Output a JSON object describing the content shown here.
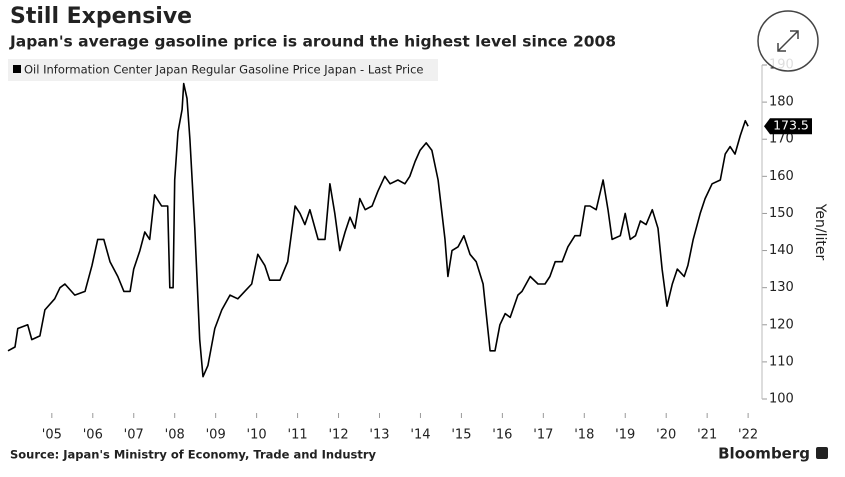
{
  "chart_data": {
    "type": "line",
    "title": "Still Expensive",
    "subtitle": "Japan's average gasoline price is around the highest level since 2008",
    "source": "Source: Japan's Ministry of Economy, Trade and Industry",
    "brand": "Bloomberg",
    "y_label": "Yen/liter",
    "xlim": [
      2003.93,
      2022.29
    ],
    "ylim": [
      100,
      190
    ],
    "yticks": [
      100,
      110,
      120,
      130,
      140,
      150,
      160,
      170,
      180,
      190
    ],
    "xticks": [
      {
        "value": 2005,
        "label": "'05"
      },
      {
        "value": 2006,
        "label": "'06"
      },
      {
        "value": 2007,
        "label": "'07"
      },
      {
        "value": 2008,
        "label": "'08"
      },
      {
        "value": 2009,
        "label": "'09"
      },
      {
        "value": 2010,
        "label": "'10"
      },
      {
        "value": 2011,
        "label": "'11"
      },
      {
        "value": 2012,
        "label": "'12"
      },
      {
        "value": 2013,
        "label": "'13"
      },
      {
        "value": 2014,
        "label": "'14"
      },
      {
        "value": 2015,
        "label": "'15"
      },
      {
        "value": 2016,
        "label": "'16"
      },
      {
        "value": 2017,
        "label": "'17"
      },
      {
        "value": 2018,
        "label": "'18"
      },
      {
        "value": 2019,
        "label": "'19"
      },
      {
        "value": 2020,
        "label": "'20"
      },
      {
        "value": 2021,
        "label": "'21"
      },
      {
        "value": 2022,
        "label": "'22"
      }
    ],
    "x": [
      2003.93,
      2004.1,
      2004.17,
      2004.41,
      2004.51,
      2004.71,
      2004.83,
      2005.07,
      2005.2,
      2005.32,
      2005.56,
      2005.81,
      2005.98,
      2006.12,
      2006.27,
      2006.42,
      2006.61,
      2006.76,
      2006.91,
      2007.0,
      2007.15,
      2007.27,
      2007.39,
      2007.51,
      2007.68,
      2007.83,
      2007.88,
      2007.96,
      2008.0,
      2008.08,
      2008.18,
      2008.22,
      2008.3,
      2008.37,
      2008.49,
      2008.61,
      2008.69,
      2008.81,
      2008.98,
      2009.15,
      2009.35,
      2009.54,
      2009.71,
      2009.88,
      2010.03,
      2010.2,
      2010.32,
      2010.57,
      2010.76,
      2010.94,
      2011.06,
      2011.18,
      2011.3,
      2011.5,
      2011.67,
      2011.79,
      2011.91,
      2012.03,
      2012.16,
      2012.28,
      2012.4,
      2012.52,
      2012.65,
      2012.82,
      2012.96,
      2013.13,
      2013.26,
      2013.45,
      2013.62,
      2013.74,
      2013.87,
      2013.99,
      2014.14,
      2014.28,
      2014.43,
      2014.6,
      2014.67,
      2014.77,
      2014.92,
      2015.06,
      2015.21,
      2015.36,
      2015.53,
      2015.7,
      2015.82,
      2015.94,
      2016.07,
      2016.19,
      2016.38,
      2016.48,
      2016.68,
      2016.87,
      2017.04,
      2017.16,
      2017.29,
      2017.46,
      2017.6,
      2017.77,
      2017.9,
      2018.02,
      2018.14,
      2018.29,
      2018.46,
      2018.58,
      2018.68,
      2018.88,
      2019.0,
      2019.12,
      2019.25,
      2019.37,
      2019.51,
      2019.66,
      2019.8,
      2019.9,
      2020.02,
      2020.15,
      2020.27,
      2020.44,
      2020.53,
      2020.66,
      2020.83,
      2020.95,
      2021.12,
      2021.32,
      2021.44,
      2021.56,
      2021.68,
      2021.81,
      2021.93,
      2022.0
    ],
    "series": [
      {
        "name": "Oil Information Center Japan Regular Gasoline Price Japan - Last Price",
        "color": "#000000",
        "values": [
          113,
          114,
          119,
          120,
          116,
          117,
          124,
          127,
          130,
          131,
          128,
          129,
          136,
          143,
          143,
          137,
          133,
          129,
          129,
          135,
          140,
          145,
          143,
          155,
          152,
          152,
          130,
          130,
          159,
          172,
          178,
          185,
          181,
          170,
          146,
          116,
          106,
          109,
          119,
          124,
          128,
          127,
          129,
          131,
          139,
          136,
          132,
          132,
          137,
          152,
          150,
          147,
          151,
          143,
          143,
          158,
          150,
          140,
          145,
          149,
          146,
          154,
          151,
          152,
          156,
          160,
          158,
          159,
          158,
          160,
          164,
          167,
          169,
          167,
          159,
          143,
          133,
          140,
          141,
          144,
          139,
          137,
          131,
          113,
          113,
          120,
          123,
          122,
          128,
          129,
          133,
          131,
          131,
          133,
          137,
          137,
          141,
          144,
          144,
          152,
          152,
          151,
          159,
          151,
          143,
          144,
          150,
          143,
          144,
          148,
          147,
          151,
          146,
          135,
          125,
          131,
          135,
          133,
          136,
          143,
          150,
          154,
          158,
          159,
          166,
          168,
          166,
          171,
          175,
          173.5
        ]
      }
    ]
  }
}
